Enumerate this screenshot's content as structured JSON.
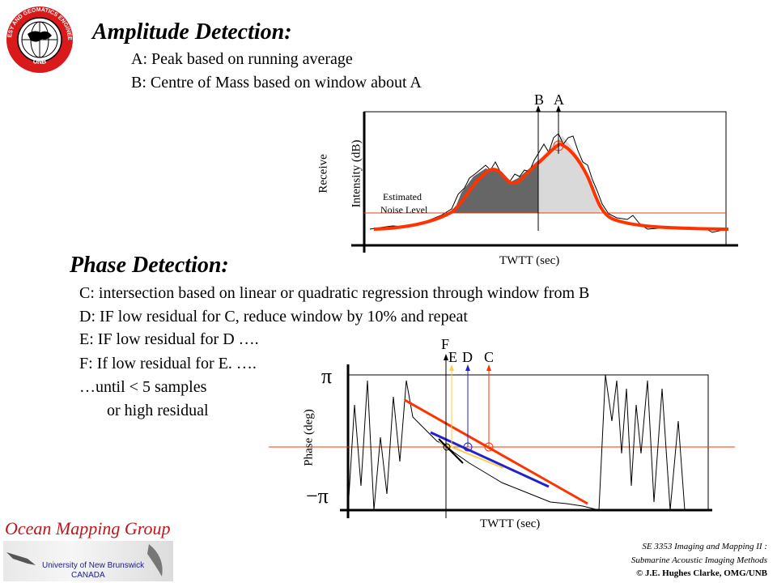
{
  "logo": {
    "ring_text_top": "GEODESY AND GEOMATICS ENGINEERING",
    "ring_text_bottom": "UNB"
  },
  "amplitude": {
    "title": "Amplitude Detection:",
    "lines": [
      "A: Peak based on running average",
      "B: Centre of Mass based on window about A"
    ]
  },
  "amp_chart": {
    "ylabel_1": "Receive",
    "ylabel_2": "Intensity (dB)",
    "xlabel": "TWTT (sec)",
    "marker_b": "B",
    "marker_a": "A",
    "noise_1": "Estimated",
    "noise_2": "Noise Level"
  },
  "phase": {
    "title": "Phase Detection:",
    "lines": [
      "C: intersection based on linear or quadratic regression through window from B",
      "D: IF low residual for C, reduce window by 10% and repeat",
      "E: IF  low residual for D ….",
      "F: If low residual for E. ….",
      "…until < 5 samples",
      "or high residual"
    ]
  },
  "phase_chart": {
    "ylabel": "Phase (deg)",
    "xlabel": "TWTT (sec)",
    "pi_top": "π",
    "pi_bottom": "−π",
    "marker_f": "F",
    "marker_e": "E",
    "marker_d": "D",
    "marker_c": "C",
    "colors": {
      "c": "#ff3300",
      "d": "#2222cc",
      "e": "#ffcc44",
      "f": "#000000"
    }
  },
  "footer": {
    "group": "Ocean Mapping Group",
    "university": "University of New Brunswick",
    "country": "CANADA",
    "course_1": "SE 3353 Imaging and Mapping II :",
    "course_2": "Submarine Acoustic Imaging Methods",
    "copyright": "© J.E. Hughes Clarke, OMG/UNB"
  }
}
